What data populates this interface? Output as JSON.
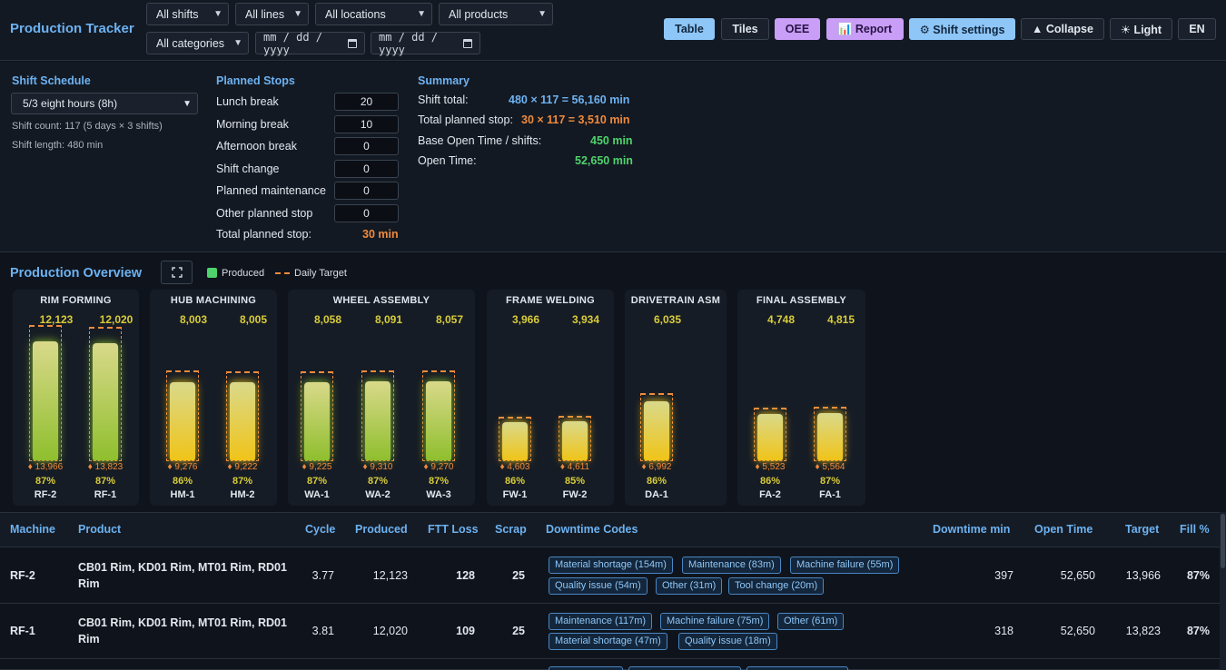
{
  "header": {
    "title": "Production Tracker",
    "filters": {
      "shifts": "All shifts",
      "lines": "All lines",
      "locations": "All locations",
      "products": "All products",
      "categories": "All categories",
      "date_from": "mm / dd / yyyy",
      "date_to": "mm / dd / yyyy"
    },
    "buttons": {
      "table": "Table",
      "tiles": "Tiles",
      "oee": "OEE",
      "report": "📊 Report",
      "shift_settings": "⚙ Shift settings",
      "collapse": "▲ Collapse",
      "light": "☀ Light",
      "lang": "EN"
    }
  },
  "shift_schedule": {
    "title": "Shift Schedule",
    "selected": "5/3 eight hours (8h)",
    "shift_count": "Shift count: 117 (5 days × 3 shifts)",
    "shift_length": "Shift length: 480 min"
  },
  "planned_stops": {
    "title": "Planned Stops",
    "items": [
      {
        "label": "Lunch break",
        "value": "20"
      },
      {
        "label": "Morning break",
        "value": "10"
      },
      {
        "label": "Afternoon break",
        "value": "0"
      },
      {
        "label": "Shift change",
        "value": "0"
      },
      {
        "label": "Planned maintenance",
        "value": "0"
      },
      {
        "label": "Other planned stop",
        "value": "0"
      }
    ],
    "total_label": "Total planned stop:",
    "total_value": "30 min"
  },
  "summary": {
    "title": "Summary",
    "rows": [
      {
        "label": "Shift total:",
        "value": "480 × 117 = 56,160 min"
      },
      {
        "label": "Total planned stop:",
        "value": "30 × 117 = 3,510 min"
      },
      {
        "label": "Base Open Time / shifts:",
        "value": "450 min"
      },
      {
        "label": "Open Time:",
        "value": "52,650 min"
      }
    ]
  },
  "overview": {
    "title": "Production Overview",
    "legend_produced": "Produced",
    "legend_target": "Daily Target",
    "colors": {
      "produced_green": "#8fbf2e",
      "produced_yellow": "#f0c419",
      "target": "#f08a3c"
    },
    "groups": [
      {
        "title": "RIM FORMING",
        "machines": [
          {
            "name": "RF-2",
            "produced": "12,123",
            "target": "♦ 13,966",
            "pct": "87%",
            "fill": 0.87
          },
          {
            "name": "RF-1",
            "produced": "12,020",
            "target": "♦ 13,823",
            "pct": "87%",
            "fill": 0.87
          }
        ]
      },
      {
        "title": "HUB MACHINING",
        "machines": [
          {
            "name": "HM-1",
            "produced": "8,003",
            "target": "♦ 9,276",
            "pct": "86%",
            "fill": 0.86
          },
          {
            "name": "HM-2",
            "produced": "8,005",
            "target": "♦ 9,222",
            "pct": "87%",
            "fill": 0.87
          }
        ]
      },
      {
        "title": "WHEEL ASSEMBLY",
        "machines": [
          {
            "name": "WA-1",
            "produced": "8,058",
            "target": "♦ 9,225",
            "pct": "87%",
            "fill": 0.87
          },
          {
            "name": "WA-2",
            "produced": "8,091",
            "target": "♦ 9,310",
            "pct": "87%",
            "fill": 0.87
          },
          {
            "name": "WA-3",
            "produced": "8,057",
            "target": "♦ 9,270",
            "pct": "87%",
            "fill": 0.87
          }
        ]
      },
      {
        "title": "FRAME WELDING",
        "machines": [
          {
            "name": "FW-1",
            "produced": "3,966",
            "target": "♦ 4,603",
            "pct": "86%",
            "fill": 0.86
          },
          {
            "name": "FW-2",
            "produced": "3,934",
            "target": "♦ 4,611",
            "pct": "85%",
            "fill": 0.85
          }
        ]
      },
      {
        "title": "DRIVETRAIN ASM",
        "machines": [
          {
            "name": "DA-1",
            "produced": "6,035",
            "target": "♦ 6,992",
            "pct": "86%",
            "fill": 0.86
          }
        ]
      },
      {
        "title": "FINAL ASSEMBLY",
        "machines": [
          {
            "name": "FA-2",
            "produced": "4,748",
            "target": "♦ 5,523",
            "pct": "86%",
            "fill": 0.86
          },
          {
            "name": "FA-1",
            "produced": "4,815",
            "target": "♦ 5,564",
            "pct": "87%",
            "fill": 0.87
          }
        ]
      }
    ]
  },
  "table": {
    "headers": {
      "machine": "Machine",
      "product": "Product",
      "cycle": "Cycle",
      "produced": "Produced",
      "ftt_loss": "FTT Loss",
      "scrap": "Scrap",
      "downtime_codes": "Downtime Codes",
      "downtime_min": "Downtime min",
      "open_time": "Open Time",
      "target": "Target",
      "fill": "Fill %"
    },
    "rows": [
      {
        "machine": "RF-2",
        "product_line1": "CB01 Rim, KD01 Rim, MT01 Rim, RD01",
        "product_line2": "Rim",
        "cycle": "3.77",
        "produced": "12,123",
        "ftt_loss": "128",
        "scrap": "25",
        "codes": [
          "Material shortage (154m)",
          "Maintenance (83m)",
          "Machine failure (55m)",
          "Quality issue (54m)",
          "Other (31m)",
          "Tool change (20m)"
        ],
        "downtime_min": "397",
        "open_time": "52,650",
        "target": "13,966",
        "fill": "87%"
      },
      {
        "machine": "RF-1",
        "product_line1": "CB01 Rim, KD01 Rim, MT01 Rim, RD01",
        "product_line2": "Rim",
        "cycle": "3.81",
        "produced": "12,020",
        "ftt_loss": "109",
        "scrap": "25",
        "codes": [
          "Maintenance (117m)",
          "Machine failure (75m)",
          "Other (61m)",
          "Material shortage (47m)",
          "Quality issue (18m)"
        ],
        "downtime_min": "318",
        "open_time": "52,650",
        "target": "13,823",
        "fill": "87%"
      }
    ]
  }
}
